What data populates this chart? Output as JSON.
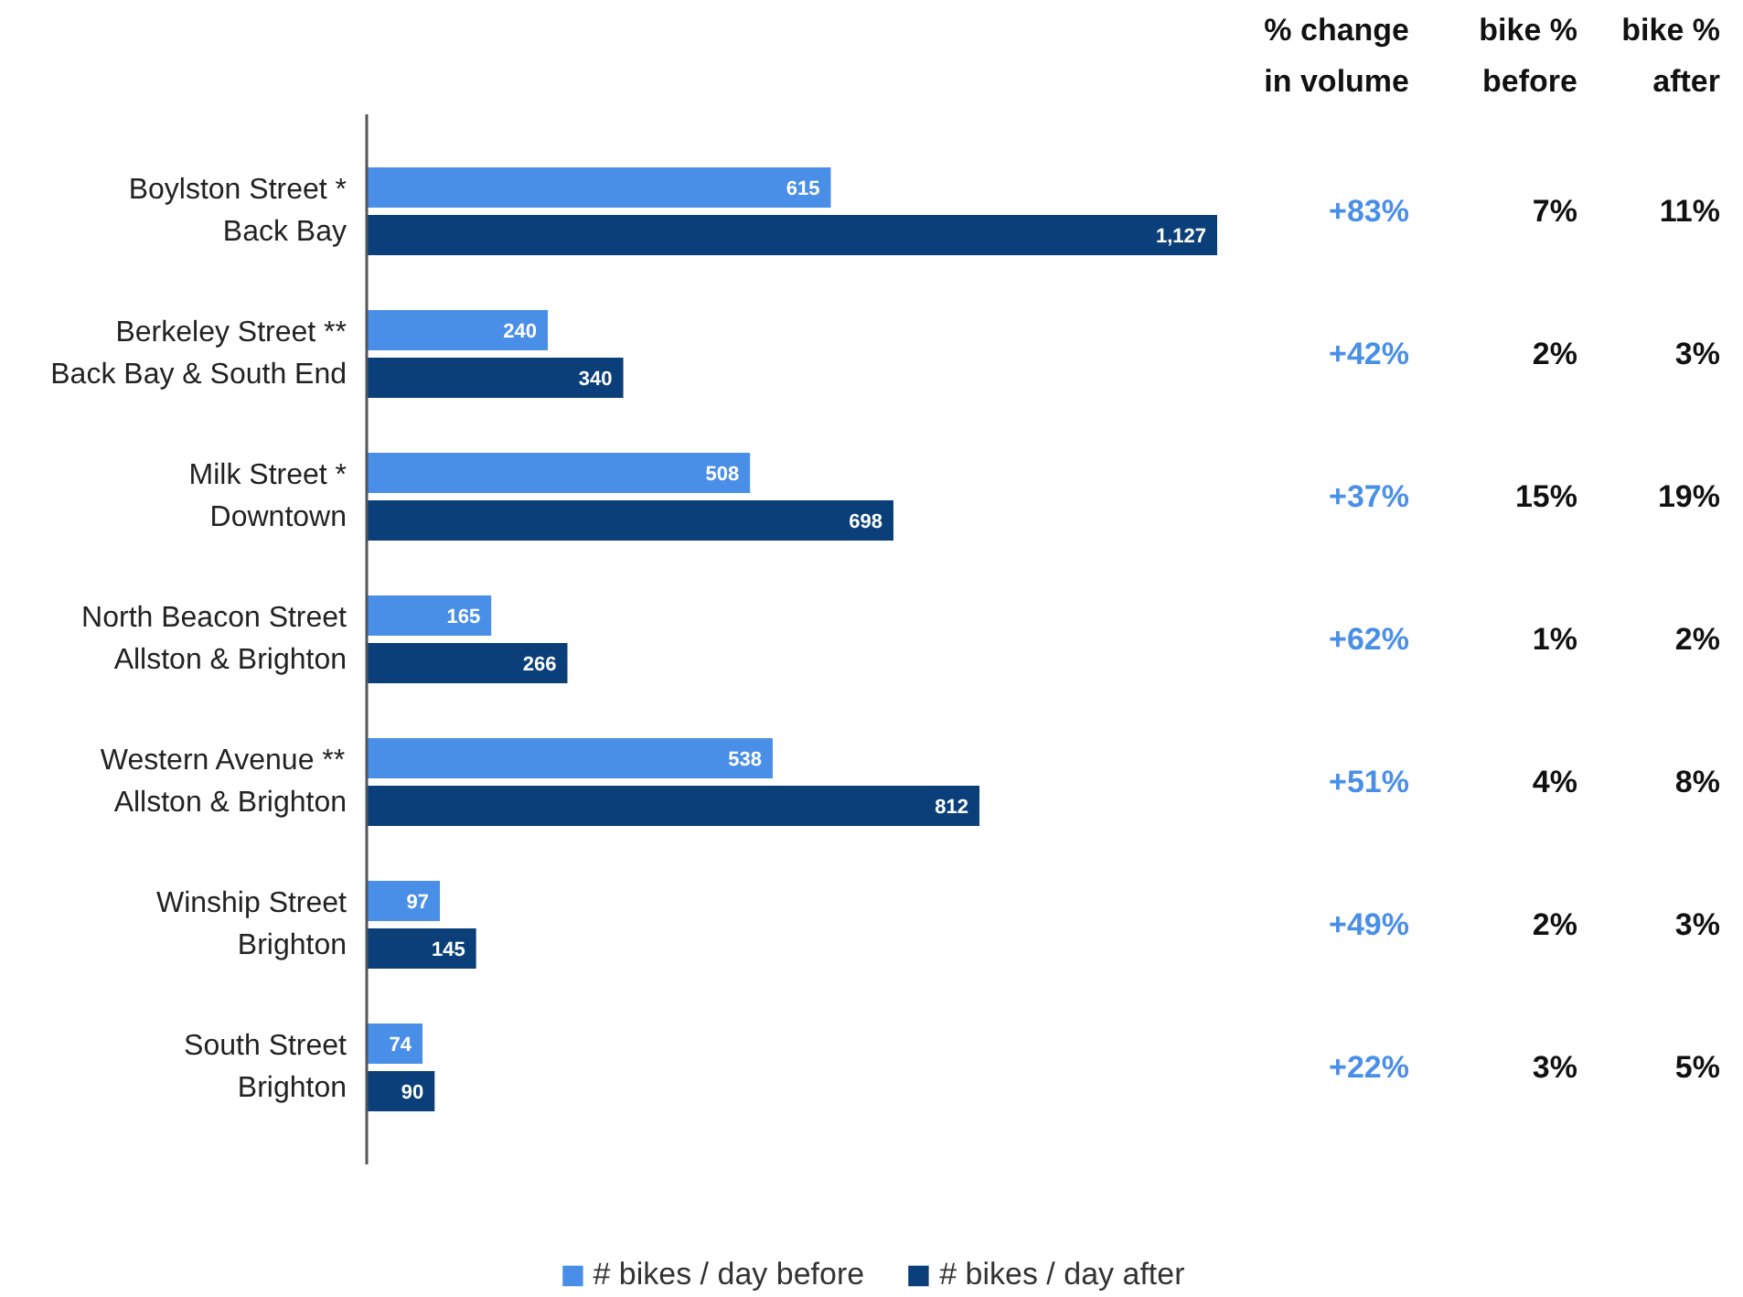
{
  "chart_data": {
    "type": "bar",
    "orientation": "horizontal",
    "grid": false,
    "legend": "bottom",
    "categories": [
      "Boylston Street *\nBack Bay",
      "Berkeley Street **\nBack Bay & South End",
      "Milk Street *\nDowntown",
      "North Beacon Street\nAllston & Brighton",
      "Western Avenue **\nAllston & Brighton",
      "Winship Street\nBrighton",
      "South Street\nBrighton"
    ],
    "series": [
      {
        "name": "# bikes / day before",
        "color": "#4a8fe7",
        "values": [
          615,
          240,
          508,
          165,
          538,
          97,
          74
        ],
        "value_labels": [
          "615",
          "240",
          "508",
          "165",
          "538",
          "97",
          "74"
        ]
      },
      {
        "name": "# bikes / day after",
        "color": "#0b3f7a",
        "values": [
          1127,
          340,
          698,
          266,
          812,
          145,
          90
        ],
        "value_labels": [
          "1,127",
          "340",
          "698",
          "266",
          "812",
          "145",
          "90"
        ]
      }
    ],
    "annotations": [
      "% change\nin volume",
      "bike %\nbefore",
      "bike %\nafter",
      "+83%",
      "7%",
      "11%",
      "+42%",
      "2%",
      "3%",
      "+37%",
      "15%",
      "19%",
      "+62%",
      "1%",
      "2%",
      "+51%",
      "4%",
      "8%",
      "+49%",
      "2%",
      "3%",
      "+22%",
      "3%",
      "5%"
    ]
  }
}
